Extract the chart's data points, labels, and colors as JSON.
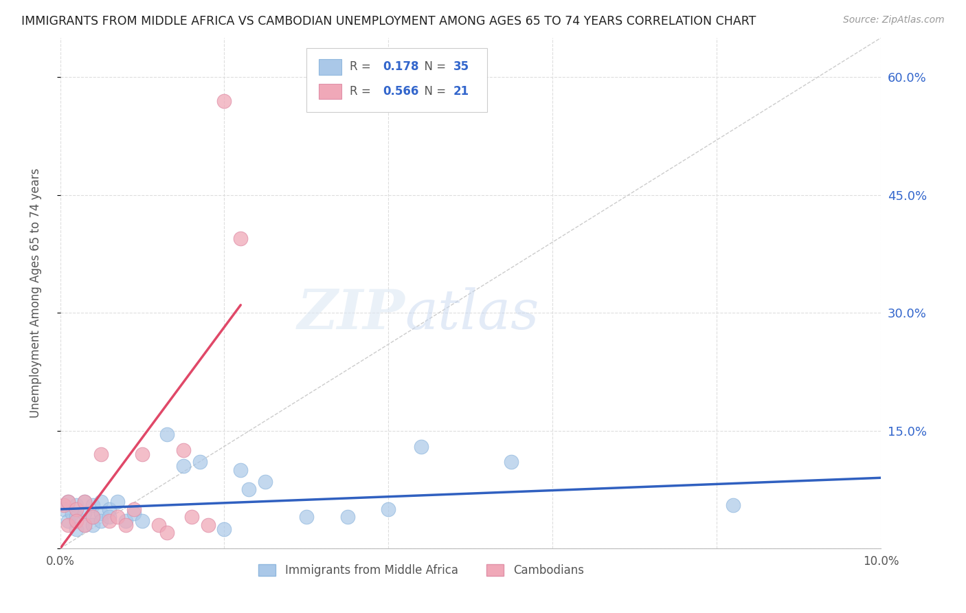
{
  "title": "IMMIGRANTS FROM MIDDLE AFRICA VS CAMBODIAN UNEMPLOYMENT AMONG AGES 65 TO 74 YEARS CORRELATION CHART",
  "source": "Source: ZipAtlas.com",
  "ylabel": "Unemployment Among Ages 65 to 74 years",
  "legend_blue_label": "Immigrants from Middle Africa",
  "legend_pink_label": "Cambodians",
  "r_blue": "0.178",
  "n_blue": "35",
  "r_pink": "0.566",
  "n_pink": "21",
  "blue_color": "#aac8e8",
  "pink_color": "#f0a8b8",
  "blue_line_color": "#3060c0",
  "pink_line_color": "#e04868",
  "diag_line_color": "#cccccc",
  "xlim": [
    0.0,
    0.1
  ],
  "ylim": [
    0.0,
    0.65
  ],
  "yticks": [
    0.0,
    0.15,
    0.3,
    0.45,
    0.6
  ],
  "ytick_labels": [
    "",
    "15.0%",
    "30.0%",
    "45.0%",
    "60.0%"
  ],
  "xticks": [
    0.0,
    0.02,
    0.04,
    0.06,
    0.08,
    0.1
  ],
  "xtick_labels": [
    "0.0%",
    "",
    "",
    "",
    "",
    "10.0%"
  ],
  "blue_scatter_x": [
    0.0005,
    0.001,
    0.001,
    0.0015,
    0.002,
    0.002,
    0.002,
    0.003,
    0.003,
    0.003,
    0.004,
    0.004,
    0.004,
    0.005,
    0.005,
    0.005,
    0.006,
    0.006,
    0.007,
    0.008,
    0.009,
    0.01,
    0.013,
    0.015,
    0.017,
    0.02,
    0.022,
    0.023,
    0.025,
    0.03,
    0.035,
    0.04,
    0.044,
    0.055,
    0.082
  ],
  "blue_scatter_y": [
    0.05,
    0.06,
    0.035,
    0.045,
    0.055,
    0.04,
    0.025,
    0.06,
    0.045,
    0.03,
    0.055,
    0.04,
    0.03,
    0.06,
    0.045,
    0.035,
    0.05,
    0.04,
    0.06,
    0.035,
    0.045,
    0.035,
    0.145,
    0.105,
    0.11,
    0.025,
    0.1,
    0.075,
    0.085,
    0.04,
    0.04,
    0.05,
    0.13,
    0.11,
    0.055
  ],
  "pink_scatter_x": [
    0.0005,
    0.001,
    0.001,
    0.002,
    0.002,
    0.003,
    0.003,
    0.004,
    0.005,
    0.006,
    0.007,
    0.008,
    0.009,
    0.01,
    0.012,
    0.013,
    0.015,
    0.016,
    0.018,
    0.02,
    0.022
  ],
  "pink_scatter_y": [
    0.055,
    0.06,
    0.03,
    0.05,
    0.035,
    0.06,
    0.03,
    0.04,
    0.12,
    0.035,
    0.04,
    0.03,
    0.05,
    0.12,
    0.03,
    0.02,
    0.125,
    0.04,
    0.03,
    0.57,
    0.395
  ],
  "blue_line_x": [
    0.0,
    0.1
  ],
  "blue_line_y": [
    0.05,
    0.09
  ],
  "pink_line_x": [
    0.0,
    0.022
  ],
  "pink_line_y": [
    0.0,
    0.31
  ],
  "watermark_line1": "ZIP",
  "watermark_line2": "atlas",
  "background_color": "#ffffff",
  "grid_color": "#dddddd"
}
